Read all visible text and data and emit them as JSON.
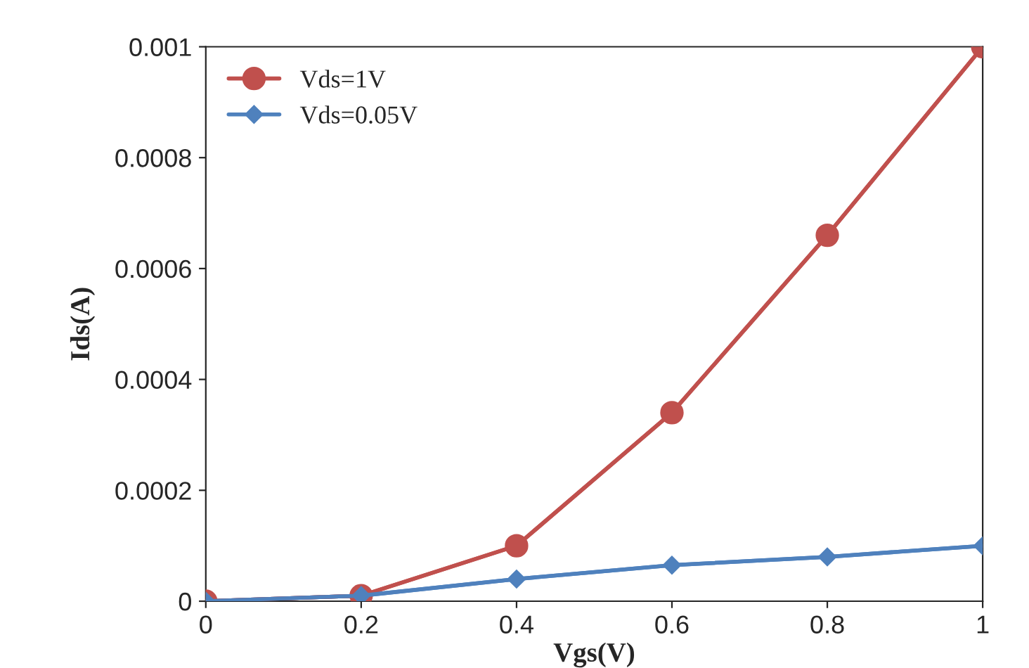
{
  "chart_data": {
    "type": "line",
    "xlabel": "Vgs(V)",
    "ylabel": "Ids(A)",
    "x": [
      0,
      0.2,
      0.4,
      0.6,
      0.8,
      1
    ],
    "series": [
      {
        "name": "Vds=1V",
        "color": "#c0504d",
        "marker": "circle",
        "values": [
          0,
          1e-05,
          0.0001,
          0.00034,
          0.00066,
          0.001
        ]
      },
      {
        "name": "Vds=0.05V",
        "color": "#4f81bd",
        "marker": "diamond",
        "values": [
          0,
          1e-05,
          4e-05,
          6.5e-05,
          8e-05,
          0.0001
        ]
      }
    ],
    "xlim": [
      0,
      1
    ],
    "ylim": [
      0,
      0.001
    ],
    "xticks": [
      0,
      0.2,
      0.4,
      0.6,
      0.8,
      1
    ],
    "yticks": [
      0,
      0.0002,
      0.0004,
      0.0006,
      0.0008,
      0.001
    ],
    "grid": false,
    "legend": "top left",
    "line_style": "solid"
  }
}
